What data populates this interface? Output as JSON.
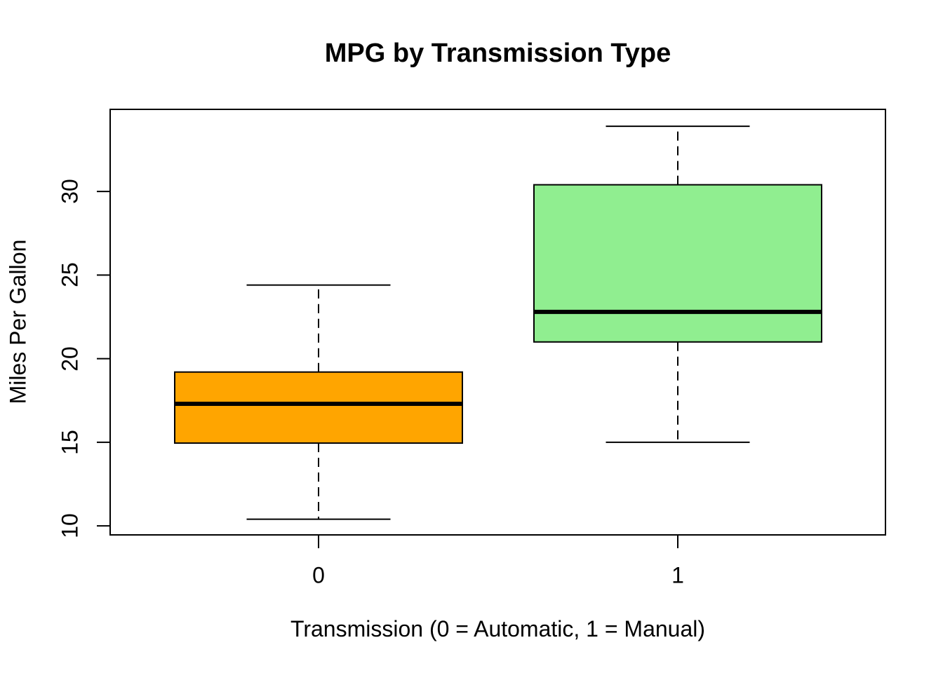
{
  "chart_data": {
    "type": "boxplot",
    "title": "MPG by Transmission Type",
    "xlabel": "Transmission (0 = Automatic, 1 = Manual)",
    "ylabel": "Miles Per Gallon",
    "categories": [
      "0",
      "1"
    ],
    "y_ticks": [
      10,
      15,
      20,
      25,
      30
    ],
    "ylim": [
      9.46,
      34.91
    ],
    "grid": false,
    "legend": "none",
    "orientation": "vertical",
    "series": [
      {
        "name": "0",
        "fill_color": "#FFA500",
        "min": 10.4,
        "q1": 14.95,
        "median": 17.3,
        "q3": 19.2,
        "max": 24.4,
        "outliers": []
      },
      {
        "name": "1",
        "fill_color": "#90EE90",
        "min": 15.0,
        "q1": 21.0,
        "median": 22.8,
        "q3": 30.4,
        "max": 33.9,
        "outliers": []
      }
    ],
    "stroke_color": "#000000",
    "background_color": "#FFFFFF"
  }
}
